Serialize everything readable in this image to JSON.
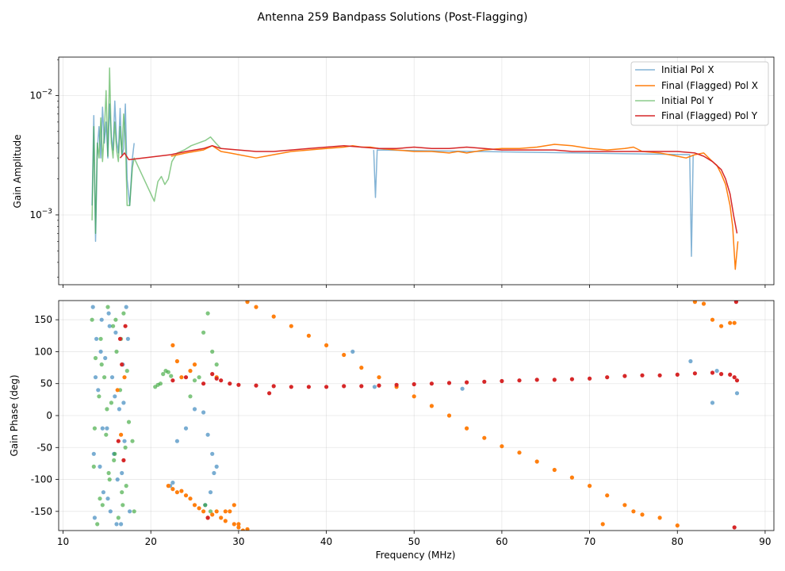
{
  "title": "Antenna 259 Bandpass Solutions (Post-Flagging)",
  "colors": {
    "initial_x": "#1f77b4",
    "final_x": "#ff7f0e",
    "initial_y": "#2ca02c",
    "final_y": "#d62728"
  },
  "chart_data": [
    {
      "type": "line",
      "scale_y": "log",
      "grid": true,
      "legend_position": "top-right",
      "ylabel": "Gain Amplitude",
      "xlim": [
        9.5,
        91
      ],
      "ylim": [
        0.00026,
        0.021
      ],
      "yticks": [
        {
          "value": 0.01,
          "label": "10",
          "exp": "−2"
        },
        {
          "value": 0.001,
          "label": "10",
          "exp": "−3"
        }
      ],
      "legend": [
        "Initial Pol X",
        "Final (Flagged) Pol X",
        "Initial Pol Y",
        "Final (Flagged) Pol Y"
      ],
      "series": [
        {
          "name": "Initial Pol X",
          "color": "#1f77b4",
          "alpha": 0.55,
          "x": [
            13.3,
            13.5,
            13.7,
            13.9,
            14.1,
            14.3,
            14.5,
            14.7,
            14.9,
            15.1,
            15.3,
            15.5,
            15.7,
            15.9,
            16.1,
            16.3,
            16.5,
            16.7,
            16.9,
            17.1,
            17.3,
            17.6,
            17.9,
            18.1
          ],
          "y": [
            0.0012,
            0.0068,
            0.0006,
            0.0035,
            0.0055,
            0.003,
            0.008,
            0.004,
            0.006,
            0.003,
            0.0085,
            0.0045,
            0.0035,
            0.009,
            0.0042,
            0.0033,
            0.0078,
            0.0031,
            0.0036,
            0.0085,
            0.002,
            0.0012,
            0.003,
            0.004
          ]
        },
        {
          "name": "Initial Pol Y",
          "color": "#2ca02c",
          "alpha": 0.55,
          "x": [
            13.3,
            13.5,
            13.7,
            13.9,
            14.1,
            14.3,
            14.5,
            14.7,
            14.9,
            15.1,
            15.3,
            15.5,
            15.7,
            15.9,
            16.1,
            16.3,
            16.5,
            16.7,
            16.9,
            17.1,
            17.3,
            17.6,
            17.9,
            18.1,
            20.4,
            20.8,
            21.2,
            21.6,
            22.0,
            22.4,
            23.0,
            23.8,
            24.6,
            25.4,
            26.2,
            26.8,
            27.4,
            28.0
          ],
          "y": [
            0.0009,
            0.0055,
            0.0007,
            0.004,
            0.003,
            0.0065,
            0.0028,
            0.005,
            0.011,
            0.0031,
            0.017,
            0.004,
            0.003,
            0.006,
            0.0035,
            0.0028,
            0.0055,
            0.0032,
            0.007,
            0.0045,
            0.0012,
            0.0012,
            0.0025,
            0.003,
            0.0013,
            0.0019,
            0.0021,
            0.0018,
            0.002,
            0.0028,
            0.0033,
            0.0035,
            0.0038,
            0.004,
            0.0042,
            0.0045,
            0.004,
            0.0036
          ]
        },
        {
          "name": "Initial Pol X (flagged spikes)",
          "color": "#1f77b4",
          "alpha": 0.55,
          "x": [
            45.4,
            45.6,
            45.8,
            81.4,
            81.6,
            81.8
          ],
          "y": [
            0.0035,
            0.0014,
            0.0035,
            0.0032,
            0.00045,
            0.0032
          ]
        },
        {
          "name": "Final (Flagged) Pol X",
          "color": "#ff7f0e",
          "alpha": 1.0,
          "x": [
            22.3,
            24,
            26,
            27,
            28,
            29,
            30,
            32,
            34,
            36,
            38,
            40,
            42,
            43,
            44,
            45,
            46,
            48,
            50,
            52,
            54,
            55,
            56,
            58,
            60,
            62,
            64,
            66,
            68,
            70,
            72,
            74,
            75,
            76,
            78,
            80,
            81,
            82,
            83,
            84,
            84.5,
            85,
            85.5,
            86,
            86.3,
            86.6,
            86.9
          ],
          "y": [
            0.0031,
            0.0033,
            0.0035,
            0.0038,
            0.0034,
            0.0033,
            0.0032,
            0.003,
            0.0032,
            0.0034,
            0.0035,
            0.0036,
            0.0037,
            0.0038,
            0.0037,
            0.0037,
            0.0036,
            0.0035,
            0.0034,
            0.0034,
            0.0033,
            0.0034,
            0.0033,
            0.0035,
            0.0036,
            0.0036,
            0.0037,
            0.0039,
            0.0038,
            0.0036,
            0.0035,
            0.0036,
            0.0037,
            0.0034,
            0.0033,
            0.0031,
            0.003,
            0.0032,
            0.0033,
            0.0028,
            0.0026,
            0.0022,
            0.0018,
            0.0012,
            0.0008,
            0.00035,
            0.0006
          ]
        },
        {
          "name": "Final (Flagged) Pol Y",
          "color": "#d62728",
          "alpha": 1.0,
          "x": [
            16.5,
            17,
            17.5,
            22.3,
            24,
            26,
            27,
            28,
            30,
            32,
            34,
            36,
            38,
            40,
            42,
            44,
            46,
            48,
            50,
            52,
            54,
            56,
            58,
            60,
            62,
            64,
            66,
            68,
            70,
            72,
            74,
            76,
            78,
            80,
            82,
            83,
            84,
            85,
            85.5,
            86,
            86.4,
            86.8
          ],
          "y": [
            0.003,
            0.0033,
            0.0029,
            0.0032,
            0.0034,
            0.0036,
            0.0038,
            0.0036,
            0.0035,
            0.0034,
            0.0034,
            0.0035,
            0.0036,
            0.0037,
            0.0038,
            0.0037,
            0.0036,
            0.0036,
            0.0037,
            0.0036,
            0.0036,
            0.0037,
            0.0036,
            0.0035,
            0.0035,
            0.0035,
            0.0035,
            0.0034,
            0.0034,
            0.0034,
            0.0034,
            0.0034,
            0.0034,
            0.0034,
            0.0033,
            0.0031,
            0.0028,
            0.0024,
            0.002,
            0.0015,
            0.001,
            0.0007
          ]
        }
      ]
    },
    {
      "type": "scatter",
      "grid": true,
      "xlabel": "Frequency (MHz)",
      "ylabel": "Gain Phase (deg)",
      "xlim": [
        9.5,
        91
      ],
      "ylim": [
        -180,
        180
      ],
      "xticks": [
        10,
        20,
        30,
        40,
        50,
        60,
        70,
        80,
        90
      ],
      "yticks": [
        -150,
        -100,
        -50,
        0,
        50,
        100,
        150
      ],
      "series": [
        {
          "name": "Initial Pol X",
          "color": "#1f77b4",
          "alpha": 0.6,
          "x": [
            13.4,
            13.6,
            13.8,
            14.0,
            14.2,
            14.4,
            14.6,
            14.8,
            15.0,
            15.2,
            15.4,
            15.6,
            15.8,
            16.0,
            16.2,
            16.4,
            16.6,
            16.8,
            17.0,
            17.2,
            17.6,
            13.5,
            14.3,
            15.1,
            15.9,
            16.7,
            13.7,
            14.5,
            15.3,
            16.1,
            16.9,
            17.4,
            22.2,
            22.5,
            23.0,
            24.0,
            25.0,
            26.0,
            26.5,
            27.0,
            27.5,
            26.2,
            26.8,
            27.2,
            43.0,
            45.5,
            55.5,
            81.5,
            84.0,
            84.5,
            86.8
          ],
          "y": [
            170,
            -160,
            120,
            40,
            -80,
            150,
            -120,
            90,
            -20,
            160,
            -150,
            60,
            -60,
            130,
            -100,
            10,
            -170,
            80,
            -40,
            170,
            -150,
            -60,
            100,
            -130,
            30,
            -90,
            60,
            -20,
            140,
            -170,
            20,
            120,
            -110,
            -105,
            -40,
            -20,
            10,
            5,
            -30,
            -60,
            -80,
            -140,
            -120,
            -90,
            100,
            45,
            42,
            85,
            20,
            70,
            35
          ]
        },
        {
          "name": "Initial Pol Y",
          "color": "#2ca02c",
          "alpha": 0.6,
          "x": [
            13.3,
            13.5,
            13.7,
            13.9,
            14.1,
            14.3,
            14.5,
            14.7,
            14.9,
            15.1,
            15.3,
            15.5,
            15.7,
            15.9,
            16.1,
            16.3,
            16.5,
            16.7,
            16.9,
            17.1,
            17.3,
            17.5,
            17.9,
            18.1,
            13.6,
            14.4,
            15.2,
            16.0,
            16.8,
            14.2,
            15.0,
            15.8,
            16.6,
            17.2,
            20.5,
            20.8,
            21.1,
            21.4,
            21.7,
            22.0,
            22.3,
            24.5,
            25.0,
            25.5,
            26.0,
            26.5,
            27.0,
            27.5,
            26.2,
            26.8
          ],
          "y": [
            150,
            -80,
            90,
            -170,
            30,
            120,
            -140,
            60,
            -30,
            170,
            -100,
            20,
            140,
            -60,
            100,
            -160,
            40,
            -120,
            160,
            -50,
            70,
            -10,
            -40,
            -150,
            -20,
            80,
            -90,
            150,
            -140,
            -130,
            10,
            -70,
            120,
            -110,
            45,
            48,
            50,
            65,
            70,
            68,
            62,
            30,
            55,
            60,
            130,
            160,
            100,
            80,
            -140,
            -150
          ]
        },
        {
          "name": "Final (Flagged) Pol X",
          "color": "#ff7f0e",
          "alpha": 1.0,
          "x": [
            16.2,
            16.6,
            17.0,
            22.0,
            22.5,
            23.0,
            23.5,
            24.0,
            24.5,
            25.0,
            25.5,
            26.0,
            26.5,
            27.0,
            27.5,
            28.0,
            28.5,
            29.0,
            29.5,
            30.0,
            30.5,
            31.0,
            22.5,
            23.0,
            23.5,
            24.5,
            25.0,
            27.5,
            28.5,
            29.5,
            30.0,
            31.0,
            32.0,
            34.0,
            36.0,
            38.0,
            40.0,
            42.0,
            44.0,
            46.0,
            48.0,
            50.0,
            52.0,
            54.0,
            56.0,
            58.0,
            60.0,
            62.0,
            64.0,
            66.0,
            68.0,
            70.0,
            72.0,
            74.0,
            75.0,
            76.0,
            78.0,
            80.0,
            82.0,
            83.0,
            84.0,
            85.0,
            86.0,
            86.5,
            71.5
          ],
          "y": [
            40,
            -30,
            60,
            -110,
            -115,
            -120,
            -118,
            -125,
            -130,
            -140,
            -145,
            -150,
            -160,
            -155,
            -150,
            -160,
            -165,
            -150,
            -170,
            -175,
            -180,
            -178,
            110,
            85,
            60,
            70,
            80,
            60,
            -150,
            -140,
            -170,
            178,
            170,
            155,
            140,
            125,
            110,
            95,
            75,
            60,
            45,
            30,
            15,
            0,
            -20,
            -35,
            -48,
            -58,
            -72,
            -85,
            -97,
            -110,
            -125,
            -140,
            -150,
            -155,
            -160,
            -172,
            178,
            175,
            150,
            140,
            145,
            145,
            -170
          ]
        },
        {
          "name": "Final (Flagged) Pol Y",
          "color": "#d62728",
          "alpha": 1.0,
          "x": [
            16.3,
            16.7,
            17.1,
            16.5,
            16.9,
            22.5,
            24.0,
            26.0,
            27.0,
            27.5,
            28.0,
            29.0,
            30.0,
            32.0,
            34.0,
            36.0,
            38.0,
            40.0,
            42.0,
            44.0,
            46.0,
            48.0,
            50.0,
            52.0,
            54.0,
            56.0,
            58.0,
            60.0,
            62.0,
            64.0,
            66.0,
            68.0,
            70.0,
            72.0,
            74.0,
            76.0,
            78.0,
            80.0,
            82.0,
            84.0,
            85.0,
            86.0,
            86.5,
            86.8,
            33.5,
            26.5,
            86.5,
            86.7
          ],
          "y": [
            -40,
            80,
            140,
            120,
            -70,
            55,
            60,
            50,
            65,
            58,
            55,
            50,
            48,
            47,
            46,
            45,
            45,
            45,
            46,
            46,
            47,
            48,
            49,
            50,
            51,
            52,
            53,
            54,
            55,
            56,
            56,
            57,
            58,
            60,
            62,
            63,
            63,
            64,
            66,
            67,
            65,
            64,
            60,
            55,
            35,
            -160,
            -175,
            178
          ]
        }
      ]
    }
  ]
}
